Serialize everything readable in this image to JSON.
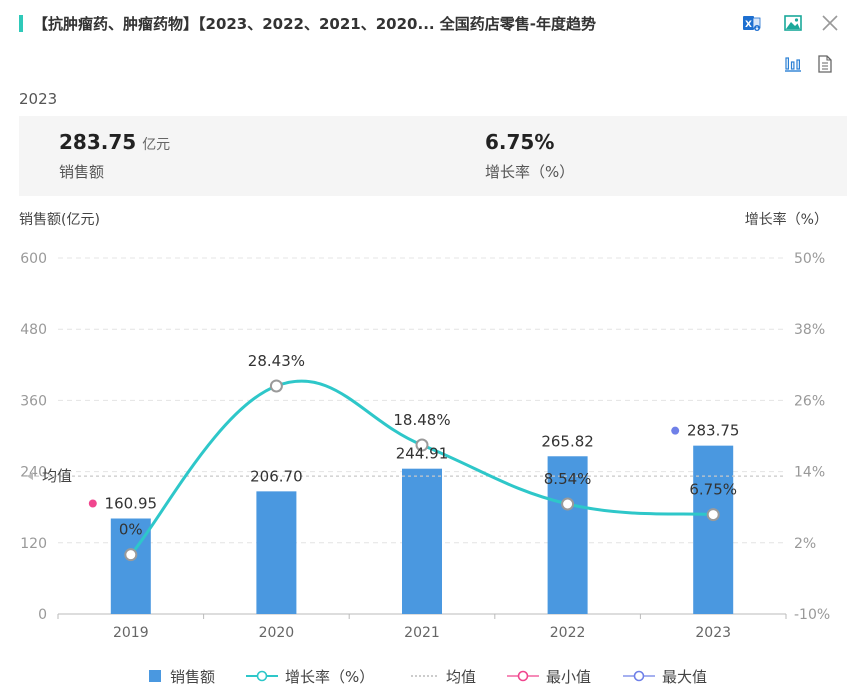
{
  "header": {
    "title": "【抗肿瘤药、肿瘤药物】【2023、2022、2021、2020... 全国药店零售-年度趋势",
    "accent_color": "#2fc9b9",
    "toolbar_icons": [
      "excel-icon",
      "image-icon",
      "close-icon",
      "bar-chart-icon",
      "document-icon"
    ]
  },
  "summary": {
    "year": "2023",
    "sales_value": "283.75",
    "sales_unit": "亿元",
    "sales_label": "销售额",
    "growth_value": "6.75%",
    "growth_label": "增长率（%）"
  },
  "legend": {
    "sales": "销售额",
    "growth": "增长率（%）",
    "average": "均值",
    "min": "最小值",
    "max": "最大值"
  },
  "chart_data": {
    "type": "bar",
    "categories": [
      "2019",
      "2020",
      "2021",
      "2022",
      "2023"
    ],
    "y_left_label": "销售额(亿元)",
    "y_right_label": "增长率（%）",
    "y_left_ticks": [
      "0",
      "120",
      "240",
      "360",
      "480",
      "600"
    ],
    "y_right_ticks": [
      "-10%",
      "2%",
      "14%",
      "26%",
      "38%",
      "50%"
    ],
    "ylim": [
      0,
      600
    ],
    "y2lim": [
      -10,
      50
    ],
    "bar_labels": [
      "160.95",
      "206.70",
      "244.91",
      "265.82",
      "283.75"
    ],
    "line_labels": [
      "0%",
      "28.43%",
      "18.48%",
      "8.54%",
      "6.75%"
    ],
    "series": [
      {
        "name": "销售额",
        "type": "bar",
        "axis": "left",
        "values": [
          160.95,
          206.7,
          244.91,
          265.82,
          283.75
        ],
        "color": "#4a98e0"
      },
      {
        "name": "增长率（%）",
        "type": "line",
        "axis": "right",
        "values": [
          0,
          28.43,
          18.48,
          8.54,
          6.75
        ],
        "color": "#2ec7c9"
      }
    ],
    "average": {
      "label": "均值",
      "value": 232.43
    },
    "min_marker": {
      "index": 0,
      "color": "#f0468e"
    },
    "max_marker": {
      "index": 4,
      "color": "#6f80e8"
    },
    "grid": true,
    "legend_position": "bottom"
  }
}
